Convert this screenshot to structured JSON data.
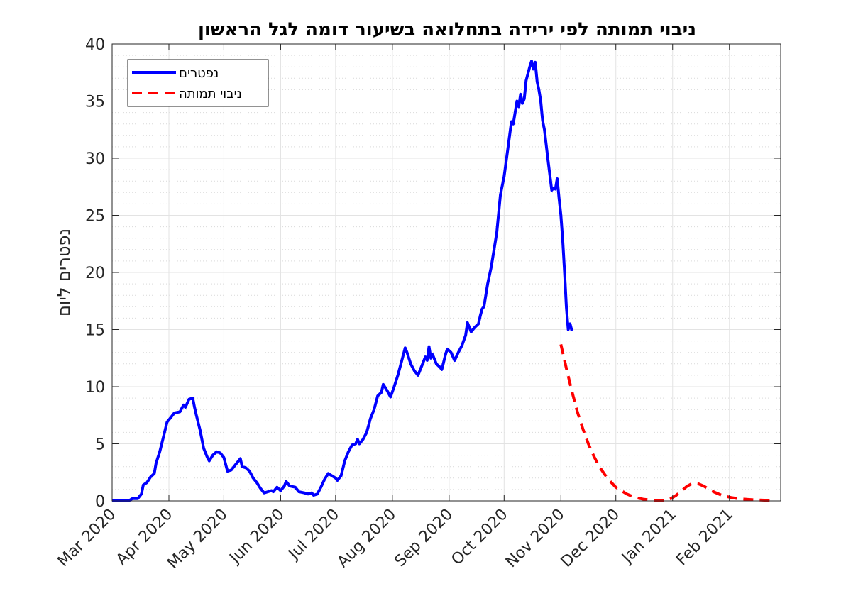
{
  "chart_data": {
    "type": "line",
    "title": "ניבוי תמותה לפי ירידה בתחלואה בשיעור דומה לגל הראשון",
    "xlabel": "",
    "ylabel": "נפטרים ליום",
    "ylim": [
      0,
      40
    ],
    "yticks": [
      0,
      5,
      10,
      15,
      20,
      25,
      30,
      35,
      40
    ],
    "xlim": [
      "2020-03-01",
      "2021-03-01"
    ],
    "xticks": [
      {
        "date": "2020-03-01",
        "label": "Mar 2020"
      },
      {
        "date": "2020-04-01",
        "label": "Apr 2020"
      },
      {
        "date": "2020-05-01",
        "label": "May 2020"
      },
      {
        "date": "2020-06-01",
        "label": "Jun 2020"
      },
      {
        "date": "2020-07-01",
        "label": "Jul 2020"
      },
      {
        "date": "2020-08-01",
        "label": "Aug 2020"
      },
      {
        "date": "2020-09-01",
        "label": "Sep 2020"
      },
      {
        "date": "2020-10-01",
        "label": "Oct 2020"
      },
      {
        "date": "2020-11-01",
        "label": "Nov 2020"
      },
      {
        "date": "2020-12-01",
        "label": "Dec 2020"
      },
      {
        "date": "2021-01-01",
        "label": "Jan 2021"
      },
      {
        "date": "2021-02-01",
        "label": "Feb 2021"
      }
    ],
    "grid": true,
    "minor_grid": true,
    "legend_position": "top-left",
    "series": [
      {
        "name": "נפטרים",
        "color": "#0000ff",
        "style": "solid",
        "points": [
          [
            "2020-03-01",
            0
          ],
          [
            "2020-03-05",
            0
          ],
          [
            "2020-03-10",
            0
          ],
          [
            "2020-03-12",
            0.2
          ],
          [
            "2020-03-15",
            0.2
          ],
          [
            "2020-03-17",
            0.6
          ],
          [
            "2020-03-18",
            1.4
          ],
          [
            "2020-03-20",
            1.6
          ],
          [
            "2020-03-22",
            2.1
          ],
          [
            "2020-03-24",
            2.4
          ],
          [
            "2020-03-25",
            3.3
          ],
          [
            "2020-03-27",
            4.3
          ],
          [
            "2020-03-29",
            5.6
          ],
          [
            "2020-03-31",
            6.9
          ],
          [
            "2020-04-02",
            7.3
          ],
          [
            "2020-04-04",
            7.7
          ],
          [
            "2020-04-07",
            7.8
          ],
          [
            "2020-04-09",
            8.4
          ],
          [
            "2020-04-10",
            8.2
          ],
          [
            "2020-04-12",
            8.9
          ],
          [
            "2020-04-14",
            9.0
          ],
          [
            "2020-04-15",
            8.2
          ],
          [
            "2020-04-16",
            7.5
          ],
          [
            "2020-04-18",
            6.2
          ],
          [
            "2020-04-20",
            4.6
          ],
          [
            "2020-04-22",
            3.8
          ],
          [
            "2020-04-23",
            3.5
          ],
          [
            "2020-04-25",
            4.0
          ],
          [
            "2020-04-27",
            4.3
          ],
          [
            "2020-04-29",
            4.2
          ],
          [
            "2020-05-01",
            3.8
          ],
          [
            "2020-05-03",
            2.6
          ],
          [
            "2020-05-05",
            2.7
          ],
          [
            "2020-05-07",
            3.1
          ],
          [
            "2020-05-09",
            3.5
          ],
          [
            "2020-05-10",
            3.7
          ],
          [
            "2020-05-11",
            3.0
          ],
          [
            "2020-05-13",
            2.9
          ],
          [
            "2020-05-15",
            2.6
          ],
          [
            "2020-05-17",
            2.0
          ],
          [
            "2020-05-19",
            1.6
          ],
          [
            "2020-05-21",
            1.1
          ],
          [
            "2020-05-23",
            0.7
          ],
          [
            "2020-05-25",
            0.8
          ],
          [
            "2020-05-27",
            0.9
          ],
          [
            "2020-05-28",
            0.8
          ],
          [
            "2020-05-30",
            1.2
          ],
          [
            "2020-06-01",
            0.9
          ],
          [
            "2020-06-03",
            1.3
          ],
          [
            "2020-06-04",
            1.7
          ],
          [
            "2020-06-06",
            1.3
          ],
          [
            "2020-06-09",
            1.2
          ],
          [
            "2020-06-11",
            0.8
          ],
          [
            "2020-06-14",
            0.7
          ],
          [
            "2020-06-16",
            0.6
          ],
          [
            "2020-06-18",
            0.7
          ],
          [
            "2020-06-19",
            0.5
          ],
          [
            "2020-06-21",
            0.6
          ],
          [
            "2020-06-23",
            1.2
          ],
          [
            "2020-06-25",
            1.9
          ],
          [
            "2020-06-27",
            2.4
          ],
          [
            "2020-06-29",
            2.2
          ],
          [
            "2020-07-01",
            2.0
          ],
          [
            "2020-07-02",
            1.8
          ],
          [
            "2020-07-04",
            2.2
          ],
          [
            "2020-07-06",
            3.5
          ],
          [
            "2020-07-08",
            4.3
          ],
          [
            "2020-07-10",
            4.9
          ],
          [
            "2020-07-12",
            5.0
          ],
          [
            "2020-07-13",
            5.4
          ],
          [
            "2020-07-14",
            5.0
          ],
          [
            "2020-07-16",
            5.4
          ],
          [
            "2020-07-18",
            6.0
          ],
          [
            "2020-07-20",
            7.2
          ],
          [
            "2020-07-22",
            8.0
          ],
          [
            "2020-07-24",
            9.2
          ],
          [
            "2020-07-26",
            9.5
          ],
          [
            "2020-07-27",
            10.2
          ],
          [
            "2020-07-29",
            9.7
          ],
          [
            "2020-07-31",
            9.1
          ],
          [
            "2020-08-02",
            10.0
          ],
          [
            "2020-08-04",
            11.0
          ],
          [
            "2020-08-06",
            12.2
          ],
          [
            "2020-08-08",
            13.4
          ],
          [
            "2020-08-09",
            13.0
          ],
          [
            "2020-08-11",
            12.0
          ],
          [
            "2020-08-13",
            11.4
          ],
          [
            "2020-08-15",
            11.0
          ],
          [
            "2020-08-17",
            11.8
          ],
          [
            "2020-08-19",
            12.6
          ],
          [
            "2020-08-20",
            12.3
          ],
          [
            "2020-08-21",
            13.5
          ],
          [
            "2020-08-22",
            12.5
          ],
          [
            "2020-08-23",
            12.8
          ],
          [
            "2020-08-25",
            12.0
          ],
          [
            "2020-08-27",
            11.7
          ],
          [
            "2020-08-28",
            11.5
          ],
          [
            "2020-08-30",
            12.8
          ],
          [
            "2020-08-31",
            13.3
          ],
          [
            "2020-09-02",
            13.0
          ],
          [
            "2020-09-04",
            12.3
          ],
          [
            "2020-09-06",
            13.0
          ],
          [
            "2020-09-08",
            13.6
          ],
          [
            "2020-09-10",
            14.5
          ],
          [
            "2020-09-11",
            15.6
          ],
          [
            "2020-09-13",
            14.8
          ],
          [
            "2020-09-15",
            15.2
          ],
          [
            "2020-09-17",
            15.5
          ],
          [
            "2020-09-18",
            16.2
          ],
          [
            "2020-09-19",
            16.8
          ],
          [
            "2020-09-20",
            17.0
          ],
          [
            "2020-09-22",
            19.0
          ],
          [
            "2020-09-24",
            20.5
          ],
          [
            "2020-09-26",
            22.5
          ],
          [
            "2020-09-27",
            23.5
          ],
          [
            "2020-09-29",
            26.8
          ],
          [
            "2020-10-01",
            28.4
          ],
          [
            "2020-10-03",
            30.8
          ],
          [
            "2020-10-05",
            33.2
          ],
          [
            "2020-10-06",
            33.0
          ],
          [
            "2020-10-08",
            35.0
          ],
          [
            "2020-10-09",
            34.5
          ],
          [
            "2020-10-10",
            35.6
          ],
          [
            "2020-10-11",
            34.8
          ],
          [
            "2020-10-12",
            35.2
          ],
          [
            "2020-10-13",
            36.8
          ],
          [
            "2020-10-15",
            38.0
          ],
          [
            "2020-10-16",
            38.5
          ],
          [
            "2020-10-17",
            37.8
          ],
          [
            "2020-10-18",
            38.4
          ],
          [
            "2020-10-19",
            36.7
          ],
          [
            "2020-10-20",
            36.0
          ],
          [
            "2020-10-21",
            35.0
          ],
          [
            "2020-10-22",
            33.3
          ],
          [
            "2020-10-23",
            32.5
          ],
          [
            "2020-10-25",
            29.8
          ],
          [
            "2020-10-26",
            28.5
          ],
          [
            "2020-10-27",
            27.2
          ],
          [
            "2020-10-28",
            27.4
          ],
          [
            "2020-10-29",
            27.3
          ],
          [
            "2020-10-30",
            28.2
          ],
          [
            "2020-10-31",
            26.5
          ],
          [
            "2020-11-01",
            25.0
          ],
          [
            "2020-11-02",
            22.8
          ],
          [
            "2020-11-03",
            20.0
          ],
          [
            "2020-11-04",
            17.0
          ],
          [
            "2020-11-05",
            15.0
          ],
          [
            "2020-11-06",
            15.5
          ],
          [
            "2020-11-07",
            14.9
          ]
        ]
      },
      {
        "name": "ניבוי תמותה",
        "color": "#ff0000",
        "style": "dashed",
        "points": [
          [
            "2020-11-01",
            13.7
          ],
          [
            "2020-11-04",
            11.6
          ],
          [
            "2020-11-07",
            9.6
          ],
          [
            "2020-11-10",
            7.8
          ],
          [
            "2020-11-13",
            6.3
          ],
          [
            "2020-11-16",
            5.0
          ],
          [
            "2020-11-19",
            3.9
          ],
          [
            "2020-11-22",
            3.0
          ],
          [
            "2020-11-25",
            2.3
          ],
          [
            "2020-11-28",
            1.7
          ],
          [
            "2020-12-01",
            1.2
          ],
          [
            "2020-12-04",
            0.9
          ],
          [
            "2020-12-07",
            0.6
          ],
          [
            "2020-12-10",
            0.4
          ],
          [
            "2020-12-13",
            0.25
          ],
          [
            "2020-12-16",
            0.15
          ],
          [
            "2020-12-19",
            0.1
          ],
          [
            "2020-12-22",
            0.05
          ],
          [
            "2020-12-25",
            0.05
          ],
          [
            "2020-12-28",
            0.05
          ],
          [
            "2020-12-31",
            0.2
          ],
          [
            "2021-01-03",
            0.5
          ],
          [
            "2021-01-06",
            0.9
          ],
          [
            "2021-01-09",
            1.3
          ],
          [
            "2021-01-12",
            1.55
          ],
          [
            "2021-01-15",
            1.5
          ],
          [
            "2021-01-18",
            1.3
          ],
          [
            "2021-01-21",
            1.0
          ],
          [
            "2021-01-24",
            0.75
          ],
          [
            "2021-01-27",
            0.55
          ],
          [
            "2021-01-30",
            0.4
          ],
          [
            "2021-02-02",
            0.3
          ],
          [
            "2021-02-05",
            0.22
          ],
          [
            "2021-02-08",
            0.17
          ],
          [
            "2021-02-11",
            0.13
          ],
          [
            "2021-02-14",
            0.1
          ],
          [
            "2021-02-17",
            0.08
          ],
          [
            "2021-02-20",
            0.06
          ],
          [
            "2021-02-23",
            0.04
          ],
          [
            "2021-02-26",
            0.03
          ]
        ]
      }
    ]
  }
}
